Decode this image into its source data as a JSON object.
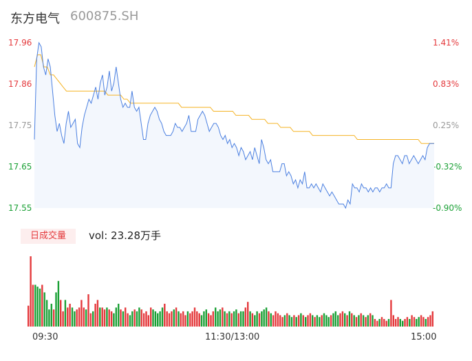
{
  "header": {
    "name": "东方电气",
    "code": "600875.SH"
  },
  "volume_panel": {
    "badge": "日成交量",
    "vol_text": "vol: 23.28万手"
  },
  "colors": {
    "up": "#e4393c",
    "down": "#1aa035",
    "price_line": "#4a7fe0",
    "avg_line": "#f5b324",
    "area_fill": "#f3f7fd",
    "neutral_text": "#999999"
  },
  "chart_data": [
    {
      "type": "line",
      "price_ticks": [
        "17.96",
        "17.86",
        "17.75",
        "17.65",
        "17.55"
      ],
      "pct_ticks": [
        "1.41%",
        "0.83%",
        "0.25%",
        "-0.32%",
        "-0.90%"
      ],
      "x_ticks": [
        "09:30",
        "11:30/13:00",
        "15:00"
      ],
      "ylim": [
        17.55,
        17.96
      ],
      "prev_close": 17.71,
      "series": [
        {
          "role": "price",
          "values": [
            17.72,
            17.92,
            17.96,
            17.95,
            17.9,
            17.88,
            17.92,
            17.9,
            17.84,
            17.78,
            17.74,
            17.76,
            17.73,
            17.71,
            17.76,
            17.79,
            17.75,
            17.76,
            17.77,
            17.71,
            17.7,
            17.75,
            17.78,
            17.8,
            17.82,
            17.81,
            17.83,
            17.85,
            17.82,
            17.86,
            17.88,
            17.83,
            17.85,
            17.89,
            17.84,
            17.86,
            17.9,
            17.86,
            17.82,
            17.8,
            17.81,
            17.8,
            17.8,
            17.84,
            17.8,
            17.79,
            17.8,
            17.76,
            17.72,
            17.72,
            17.76,
            17.78,
            17.79,
            17.8,
            17.79,
            17.77,
            17.76,
            17.74,
            17.73,
            17.73,
            17.73,
            17.74,
            17.76,
            17.75,
            17.75,
            17.74,
            17.75,
            17.76,
            17.78,
            17.74,
            17.74,
            17.74,
            17.77,
            17.78,
            17.79,
            17.78,
            17.76,
            17.74,
            17.75,
            17.76,
            17.76,
            17.75,
            17.73,
            17.72,
            17.73,
            17.71,
            17.72,
            17.7,
            17.71,
            17.7,
            17.68,
            17.7,
            17.69,
            17.67,
            17.68,
            17.69,
            17.67,
            17.7,
            17.68,
            17.66,
            17.72,
            17.7,
            17.67,
            17.66,
            17.67,
            17.64,
            17.64,
            17.64,
            17.64,
            17.66,
            17.66,
            17.63,
            17.64,
            17.63,
            17.61,
            17.62,
            17.6,
            17.62,
            17.61,
            17.64,
            17.6,
            17.6,
            17.61,
            17.6,
            17.61,
            17.6,
            17.59,
            17.61,
            17.6,
            17.59,
            17.58,
            17.59,
            17.58,
            17.57,
            17.56,
            17.56,
            17.56,
            17.55,
            17.57,
            17.56,
            17.61,
            17.6,
            17.6,
            17.59,
            17.61,
            17.6,
            17.6,
            17.59,
            17.6,
            17.59,
            17.6,
            17.6,
            17.59,
            17.6,
            17.6,
            17.61,
            17.6,
            17.6,
            17.66,
            17.68,
            17.68,
            17.67,
            17.66,
            17.68,
            17.68,
            17.66,
            17.67,
            17.68,
            17.67,
            17.66,
            17.67,
            17.68,
            17.67,
            17.7,
            17.71,
            17.71,
            17.71
          ]
        },
        {
          "role": "average",
          "values": [
            17.9,
            17.93,
            17.93,
            17.9,
            17.9,
            17.88,
            17.88,
            17.87,
            17.86,
            17.85,
            17.84,
            17.84,
            17.84,
            17.84,
            17.84,
            17.84,
            17.84,
            17.84,
            17.84,
            17.84,
            17.84,
            17.84,
            17.84,
            17.83,
            17.83,
            17.83,
            17.83,
            17.83,
            17.82,
            17.82,
            17.81,
            17.81,
            17.81,
            17.81,
            17.81,
            17.81,
            17.81,
            17.81,
            17.81,
            17.81,
            17.81,
            17.81,
            17.81,
            17.81,
            17.81,
            17.81,
            17.8,
            17.8,
            17.8,
            17.8,
            17.8,
            17.8,
            17.8,
            17.8,
            17.8,
            17.8,
            17.79,
            17.79,
            17.79,
            17.79,
            17.79,
            17.79,
            17.79,
            17.78,
            17.78,
            17.78,
            17.78,
            17.78,
            17.77,
            17.77,
            17.77,
            17.77,
            17.77,
            17.76,
            17.76,
            17.76,
            17.76,
            17.75,
            17.75,
            17.75,
            17.75,
            17.74,
            17.74,
            17.74,
            17.74,
            17.74,
            17.74,
            17.73,
            17.73,
            17.73,
            17.73,
            17.73,
            17.73,
            17.73,
            17.73,
            17.73,
            17.73,
            17.73,
            17.73,
            17.73,
            17.73,
            17.72,
            17.72,
            17.72,
            17.72,
            17.72,
            17.72,
            17.72,
            17.72,
            17.72,
            17.72,
            17.72,
            17.72,
            17.72,
            17.72,
            17.72,
            17.72,
            17.72,
            17.72,
            17.72,
            17.72,
            17.71,
            17.71,
            17.71,
            17.71,
            17.71
          ]
        }
      ]
    },
    {
      "type": "bar",
      "volumes": [
        5.5,
        18.5,
        11,
        11,
        10.5,
        10,
        11,
        9,
        7,
        4.5,
        6,
        4.5,
        9,
        12,
        7,
        4,
        7,
        5,
        6,
        5,
        4,
        4.5,
        5,
        7,
        5,
        4.5,
        8.5,
        3.5,
        4,
        6,
        7,
        5,
        5,
        4.5,
        5,
        4.5,
        4,
        3.5,
        5,
        6,
        4.5,
        4,
        5,
        3.5,
        3,
        4,
        4.5,
        4,
        5,
        4.5,
        3.5,
        4,
        3,
        5,
        4.5,
        4,
        3.5,
        4,
        5,
        6,
        4,
        3.5,
        4,
        4.5,
        5,
        4,
        3.5,
        4,
        3,
        4,
        3.5,
        4,
        5,
        4,
        3.5,
        3,
        4,
        4.5,
        3.5,
        3,
        4,
        5,
        4,
        4.5,
        5,
        4,
        3.5,
        4,
        3.5,
        4,
        4.5,
        3.5,
        4,
        4,
        5,
        6.5,
        4,
        3.5,
        3,
        4,
        3.5,
        4,
        4.5,
        5,
        4,
        3.5,
        3,
        4,
        3.5,
        3,
        2.5,
        3,
        3.5,
        3,
        2.5,
        3,
        2.5,
        3,
        3.5,
        3,
        2.5,
        3,
        3.5,
        3,
        2.5,
        3,
        2.5,
        3,
        3.5,
        3,
        2.5,
        3,
        3.5,
        4,
        3,
        3.5,
        4,
        3.5,
        3,
        4,
        3.5,
        3,
        2.5,
        3,
        3.5,
        3,
        2.5,
        3,
        3.5,
        3,
        2,
        1.5,
        2,
        2.5,
        2,
        1.5,
        2,
        7,
        3,
        2,
        2.5,
        2,
        1.5,
        2,
        2.5,
        2,
        3,
        2.5,
        2,
        2.5,
        3,
        2.5,
        2,
        2.5,
        3,
        4
      ]
    }
  ]
}
